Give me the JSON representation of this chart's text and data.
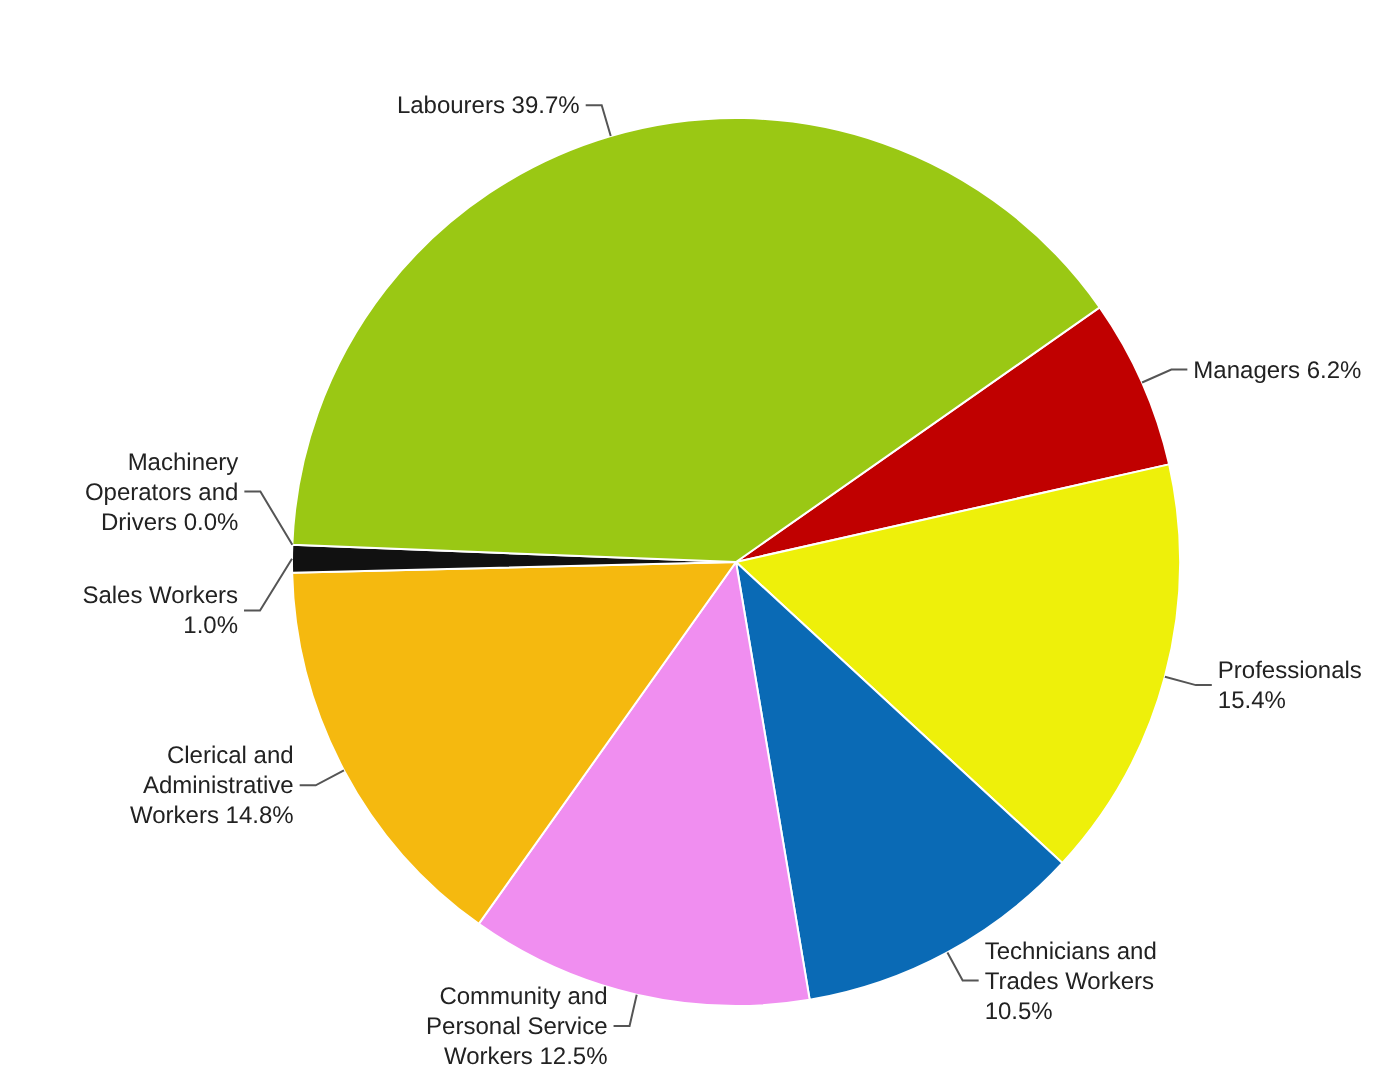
{
  "chart_data": {
    "type": "pie",
    "categories": [
      "Managers",
      "Professionals",
      "Technicians and Trades Workers",
      "Community and Personal Service Workers",
      "Clerical and Administrative Workers",
      "Sales Workers",
      "Machinery Operators and Drivers",
      "Labourers"
    ],
    "values": [
      6.2,
      15.4,
      10.5,
      12.5,
      14.8,
      1.0,
      0.0,
      39.7
    ],
    "colors": [
      "#c00000",
      "#eef00a",
      "#0a6ab5",
      "#f08ef0",
      "#f5b90f",
      "#111111",
      "#7f7f7f",
      "#9ac814"
    ],
    "value_labels": [
      "6.2%",
      "15.4%",
      "10.5%",
      "12.5%",
      "14.8%",
      "1.0%",
      "0.0%",
      "39.7%"
    ]
  }
}
